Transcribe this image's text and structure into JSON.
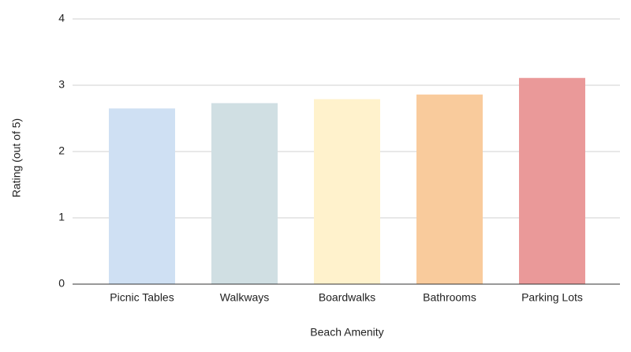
{
  "chart_data": {
    "type": "bar",
    "categories": [
      "Picnic Tables",
      "Walkways",
      "Boardwalks",
      "Bathrooms",
      "Parking Lots"
    ],
    "values": [
      2.65,
      2.73,
      2.79,
      2.86,
      3.11
    ],
    "colors": [
      "#cfe0f3",
      "#d0dfe3",
      "#fff2cc",
      "#f9cb9c",
      "#ea9999"
    ],
    "x_label": "Beach Amenity",
    "y_label": "Rating (out of 5)",
    "ylim": [
      0,
      4
    ],
    "yticks": [
      0,
      1,
      2,
      3,
      4
    ],
    "grid": true
  }
}
